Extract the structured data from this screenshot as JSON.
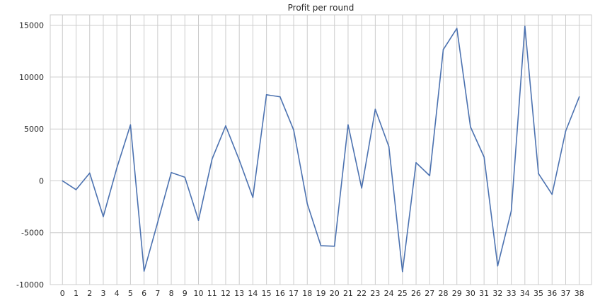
{
  "chart_data": {
    "type": "line",
    "title": "Profit per round",
    "xlabel": "",
    "ylabel": "",
    "grid": true,
    "legend": "none",
    "x": [
      0,
      1,
      2,
      3,
      4,
      5,
      6,
      7,
      8,
      9,
      10,
      11,
      12,
      13,
      14,
      15,
      16,
      17,
      18,
      19,
      20,
      21,
      22,
      23,
      24,
      25,
      26,
      27,
      28,
      29,
      30,
      31,
      32,
      33,
      34,
      35,
      36,
      37,
      38
    ],
    "xlim": [
      -0.9,
      38.9
    ],
    "ylim": [
      -10000,
      16000
    ],
    "yticks": [
      -10000,
      -5000,
      0,
      5000,
      10000,
      15000
    ],
    "series": [
      {
        "values": [
          0,
          -850,
          750,
          -3450,
          1250,
          5400,
          -8700,
          -4000,
          800,
          350,
          -3800,
          2100,
          5300,
          2000,
          -1600,
          8300,
          8100,
          4900,
          -2200,
          -6250,
          -6300,
          5400,
          -700,
          6900,
          3300,
          -8750,
          1750,
          500,
          12650,
          14700,
          5200,
          2300,
          -8200,
          -2900,
          14900,
          700,
          -1300,
          4800,
          8100
        ],
        "color": "#4c72b0"
      }
    ]
  },
  "colors": {
    "line": "#4c72b0",
    "grid": "#cccccc",
    "frame": "#cccccc",
    "text": "#262626"
  }
}
